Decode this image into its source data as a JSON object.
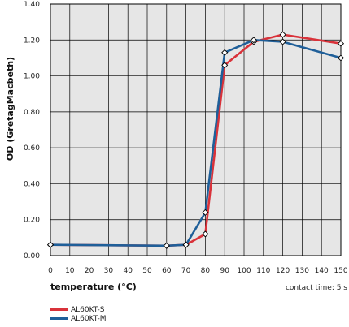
{
  "chart_data": {
    "type": "line",
    "title": "",
    "xlabel": "temperature (°C)",
    "ylabel": "OD (GretagMacbeth)",
    "note": "contact time: 5 s",
    "xlim": [
      0,
      150
    ],
    "ylim": [
      0,
      1.4
    ],
    "x_ticks": [
      0,
      10,
      20,
      30,
      40,
      50,
      60,
      70,
      80,
      90,
      100,
      110,
      120,
      130,
      140,
      150
    ],
    "y_ticks": [
      "0.00",
      "0.20",
      "0.40",
      "0.60",
      "0.80",
      "1.00",
      "1.20",
      "1.40"
    ],
    "grid": true,
    "legend_position": "bottom-left",
    "series": [
      {
        "name": "AL60KT-S",
        "color": "#d9323a",
        "x": [
          0,
          60,
          70,
          80,
          90,
          105,
          120,
          150
        ],
        "y": [
          0.06,
          0.055,
          0.06,
          0.12,
          1.06,
          1.19,
          1.23,
          1.18
        ]
      },
      {
        "name": "AL60KT-M",
        "color": "#1f5f99",
        "x": [
          0,
          60,
          70,
          80,
          90,
          105,
          120,
          150
        ],
        "y": [
          0.06,
          0.055,
          0.06,
          0.24,
          1.13,
          1.2,
          1.19,
          1.1
        ]
      }
    ]
  }
}
